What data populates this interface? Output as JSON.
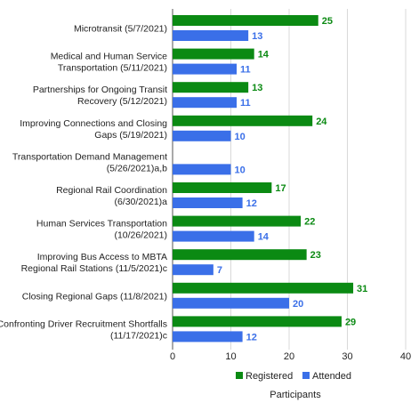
{
  "chart_data": {
    "type": "bar",
    "orientation": "horizontal",
    "xlabel": "Participants",
    "xlim": [
      0,
      40
    ],
    "xticks": [
      "0",
      "10",
      "20",
      "30",
      "40"
    ],
    "grid": "vertical",
    "legend_position": "bottom",
    "categories": [
      [
        "Microtransit (5/7/2021)"
      ],
      [
        "Medical and Human Service",
        "Transportation (5/11/2021)"
      ],
      [
        "Partnerships for Ongoing Transit",
        "Recovery (5/12/2021)"
      ],
      [
        "Improving Connections and Closing",
        "Gaps (5/19/2021)"
      ],
      [
        "Transportation Demand Management",
        "(5/26/2021)a,b"
      ],
      [
        "Regional Rail Coordination",
        "(6/30/2021)a"
      ],
      [
        "Human Services Transportation",
        "(10/26/2021)"
      ],
      [
        "Improving Bus Access to MBTA",
        "Regional Rail Stations (11/5/2021)c"
      ],
      [
        "Closing Regional Gaps (11/8/2021)"
      ],
      [
        "Confronting Driver Recruitment Shortfalls",
        "(11/17/2021)c"
      ]
    ],
    "series": [
      {
        "name": "Registered",
        "color": "#0b8a13",
        "values": [
          25,
          14,
          13,
          24,
          null,
          17,
          22,
          23,
          31,
          29
        ]
      },
      {
        "name": "Attended",
        "color": "#3a6fe8",
        "values": [
          13,
          11,
          11,
          10,
          10,
          12,
          14,
          7,
          20,
          12
        ]
      }
    ]
  }
}
